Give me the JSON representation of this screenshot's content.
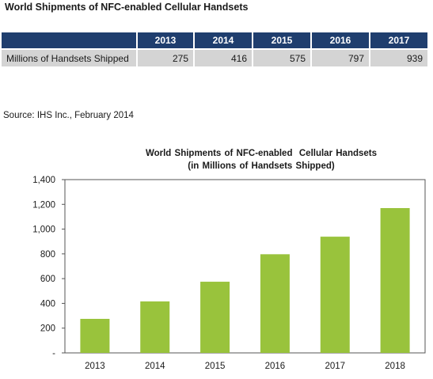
{
  "page": {
    "title": "World Shipments of NFC-enabled Cellular Handsets",
    "source": "Source: IHS Inc., February 2014"
  },
  "table": {
    "headers": [
      "",
      "2013",
      "2014",
      "2015",
      "2016",
      "2017"
    ],
    "rows": [
      {
        "label": "Millions of Handsets Shipped",
        "values": [
          "275",
          "416",
          "575",
          "797",
          "939"
        ]
      }
    ]
  },
  "colors": {
    "header_bg": "#1f3e6e",
    "row_bg": "#d4d4d4",
    "bar": "#99c33c",
    "axis": "#555555"
  },
  "chart_data": {
    "type": "bar",
    "title": "World Shipments of NFC-enabled  Cellular Handsets",
    "subtitle": "(in Millions of Handsets Shipped)",
    "categories": [
      "2013",
      "2014",
      "2015",
      "2016",
      "2017",
      "2018"
    ],
    "values": [
      275,
      416,
      575,
      797,
      939,
      1170
    ],
    "ylim": [
      0,
      1400
    ],
    "yticks": [
      0,
      200,
      400,
      600,
      800,
      1000,
      1200,
      1400
    ],
    "ytick_labels": [
      "-",
      "200",
      "400",
      "600",
      "800",
      "1,000",
      "1,200",
      "1,400"
    ],
    "grid": false,
    "xlabel": "",
    "ylabel": ""
  }
}
